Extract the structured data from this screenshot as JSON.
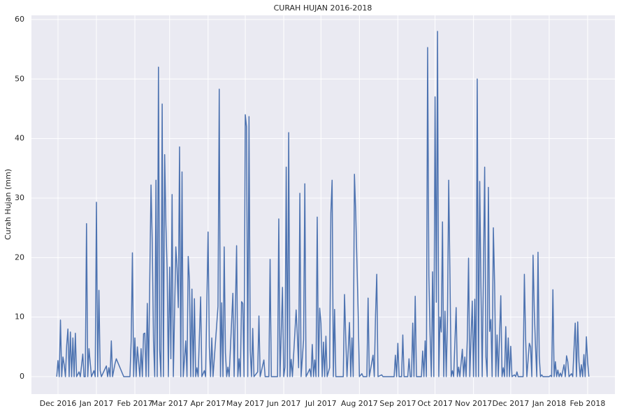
{
  "chart_data": {
    "type": "line",
    "title": "CURAH HUJAN 2016-2018",
    "y_label": "Curah Hujan (mm)",
    "color": "#4c72b0",
    "grid": true,
    "xlim": [
      -21.4,
      449
    ],
    "ylim": [
      -2.93,
      60.7
    ],
    "xticks": [
      {
        "value": 0,
        "label": "Dec 2016"
      },
      {
        "value": 31,
        "label": "Jan 2017"
      },
      {
        "value": 62,
        "label": "Feb 2017"
      },
      {
        "value": 90,
        "label": "Mar 2017"
      },
      {
        "value": 121,
        "label": "Apr 2017"
      },
      {
        "value": 151,
        "label": "May 2017"
      },
      {
        "value": 182,
        "label": "Jun 2017"
      },
      {
        "value": 212,
        "label": "Jul 2017"
      },
      {
        "value": 243,
        "label": "Aug 2017"
      },
      {
        "value": 274,
        "label": "Sep 2017"
      },
      {
        "value": 304,
        "label": "Oct 2017"
      },
      {
        "value": 335,
        "label": "Nov 2017"
      },
      {
        "value": 365,
        "label": "Dec 2017"
      },
      {
        "value": 396,
        "label": "Jan 2018"
      },
      {
        "value": 427,
        "label": "Feb 2018"
      }
    ],
    "yticks": [
      0,
      10,
      20,
      30,
      40,
      50,
      60
    ],
    "x": [
      -1,
      0,
      1,
      2,
      3,
      4,
      5,
      6,
      7,
      8,
      9,
      10,
      11,
      12,
      13,
      14,
      15,
      17,
      18,
      20,
      21,
      22,
      23,
      24,
      25,
      26,
      27,
      29,
      30,
      31,
      32,
      33,
      34,
      35,
      39,
      40,
      41,
      42,
      43,
      44,
      46,
      47,
      53,
      58,
      59,
      60,
      61,
      62,
      63,
      64,
      65,
      66,
      67,
      68,
      69,
      70,
      71,
      72,
      73,
      74,
      75,
      76,
      77,
      78,
      79,
      80,
      81,
      82,
      83,
      84,
      85,
      86,
      87,
      88,
      89,
      90,
      91,
      92,
      93,
      95,
      96,
      97,
      98,
      99,
      100,
      101,
      103,
      104,
      105,
      106,
      107,
      108,
      109,
      110,
      111,
      112,
      113,
      115,
      116,
      118,
      119,
      121,
      122,
      123,
      124,
      125,
      129,
      130,
      131,
      132,
      133,
      134,
      135,
      136,
      137,
      138,
      141,
      142,
      144,
      145,
      146,
      147,
      148,
      149,
      150,
      151,
      152,
      153,
      154,
      155,
      156,
      157,
      158,
      161,
      162,
      163,
      166,
      167,
      170,
      171,
      172,
      177,
      178,
      179,
      181,
      182,
      183,
      184,
      185,
      186,
      187,
      188,
      189,
      192,
      193,
      194,
      195,
      196,
      198,
      199,
      200,
      203,
      204,
      205,
      206,
      207,
      208,
      209,
      210,
      211,
      212,
      213,
      214,
      215,
      216,
      217,
      219,
      220,
      221,
      222,
      223,
      224,
      230,
      231,
      232,
      233,
      235,
      236,
      237,
      238,
      239,
      240,
      241,
      242,
      243,
      245,
      246,
      249,
      250,
      251,
      254,
      255,
      256,
      257,
      258,
      261,
      262,
      271,
      272,
      273,
      274,
      275,
      277,
      278,
      279,
      282,
      283,
      284,
      285,
      286,
      287,
      288,
      289,
      293,
      294,
      295,
      296,
      297,
      298,
      299,
      300,
      301,
      302,
      303,
      304,
      305,
      306,
      307,
      308,
      309,
      310,
      311,
      312,
      313,
      314,
      315,
      316,
      317,
      318,
      319,
      321,
      322,
      323,
      324,
      326,
      327,
      328,
      329,
      330,
      331,
      332,
      334,
      335,
      336,
      337,
      338,
      339,
      340,
      341,
      342,
      344,
      345,
      346,
      347,
      348,
      349,
      350,
      351,
      352,
      353,
      354,
      355,
      357,
      358,
      359,
      360,
      361,
      362,
      363,
      364,
      365,
      366,
      368,
      369,
      370,
      371,
      375,
      376,
      377,
      378,
      380,
      381,
      382,
      383,
      384,
      385,
      386,
      387,
      388,
      389,
      390,
      391,
      396,
      397,
      398,
      399,
      400,
      401,
      402,
      403,
      404,
      405,
      406,
      408,
      409,
      410,
      411,
      412,
      414,
      415,
      417,
      418,
      419,
      420,
      421,
      422,
      423,
      424,
      425,
      426,
      427,
      428
    ],
    "values": [
      0,
      2.7,
      0,
      9.5,
      0,
      3.3,
      2,
      0,
      5.2,
      8,
      0,
      7.5,
      0,
      6.5,
      0,
      7.3,
      0,
      0.8,
      0,
      3.8,
      0,
      0,
      25.7,
      0,
      4.7,
      2.3,
      0,
      1,
      0,
      29.3,
      0,
      14.5,
      1,
      0,
      1.8,
      0,
      1.5,
      0,
      6,
      0,
      2.2,
      3,
      0,
      0,
      6,
      20.8,
      0,
      6.5,
      0,
      5,
      2.5,
      0,
      4.7,
      0,
      7.2,
      7.3,
      0,
      12.3,
      0,
      16.4,
      32.2,
      22.5,
      6,
      0,
      33,
      0,
      52,
      4.5,
      0,
      45.8,
      0,
      37.3,
      25.5,
      18,
      0,
      18.4,
      3,
      30.6,
      0,
      21.8,
      18.2,
      11.6,
      38.6,
      0,
      34.4,
      0,
      6,
      0,
      20.2,
      16,
      0,
      14.7,
      0,
      13.1,
      0,
      1.5,
      0,
      13.4,
      0,
      1,
      0,
      24.3,
      5,
      0,
      6.5,
      0,
      11.8,
      48.3,
      0,
      12.4,
      0,
      21.8,
      4,
      0,
      1.6,
      0,
      14,
      0,
      22,
      0,
      3,
      0,
      12.6,
      12.3,
      0,
      44,
      42,
      0,
      43.7,
      4.5,
      0,
      8.1,
      0,
      0.8,
      10.2,
      0,
      2.8,
      0,
      0,
      19.7,
      0,
      0,
      26.5,
      0,
      15,
      0,
      1.6,
      35.2,
      0,
      41,
      0,
      2.9,
      0,
      11.2,
      6.8,
      1.5,
      30.8,
      0,
      6.2,
      32.4,
      0,
      1.3,
      0,
      5.4,
      0,
      2.8,
      0,
      26.8,
      0,
      11.5,
      9,
      0,
      5.8,
      0,
      6.8,
      0,
      1.5,
      27.5,
      33,
      0,
      11.3,
      0,
      0,
      13.8,
      6.4,
      0,
      9.1,
      0,
      6.5,
      0,
      34,
      27.7,
      19.3,
      10.8,
      0,
      0.5,
      0,
      0,
      13.2,
      0,
      3.6,
      0,
      10.3,
      17.2,
      0,
      0.3,
      0,
      0,
      3.6,
      0,
      5.6,
      0,
      0,
      7,
      0,
      0,
      3,
      0,
      0,
      9,
      0,
      13.5,
      0,
      0,
      4.3,
      0,
      6,
      0,
      55.3,
      17,
      7,
      0,
      17.6,
      0,
      47,
      12.5,
      58,
      0,
      10,
      7.5,
      26,
      0,
      11,
      0,
      9.5,
      33,
      17.2,
      0,
      1,
      0,
      11.6,
      0,
      1.6,
      0,
      4.6,
      0,
      3.3,
      0,
      6.3,
      19.9,
      0,
      12.7,
      0,
      13,
      0,
      50,
      0,
      32.8,
      14.9,
      0,
      35.2,
      3.3,
      0,
      31.8,
      7.6,
      9.6,
      0,
      25,
      15.6,
      0,
      7,
      0,
      13.6,
      0,
      1.5,
      0,
      8.4,
      0,
      6.5,
      0,
      5.1,
      0,
      0.3,
      0,
      0.8,
      0,
      0,
      17.2,
      6.5,
      0,
      5.6,
      5,
      0,
      20.4,
      11,
      5,
      0,
      20.9,
      3.4,
      0,
      0.3,
      0,
      0,
      0.2,
      0,
      14.6,
      0,
      2.5,
      0,
      1.1,
      0,
      0.6,
      0,
      2,
      0,
      3.5,
      2.5,
      0,
      0.5,
      0,
      9,
      0,
      9.2,
      2.5,
      0,
      2,
      0,
      3.7,
      0,
      6.7,
      2.5,
      0
    ]
  }
}
